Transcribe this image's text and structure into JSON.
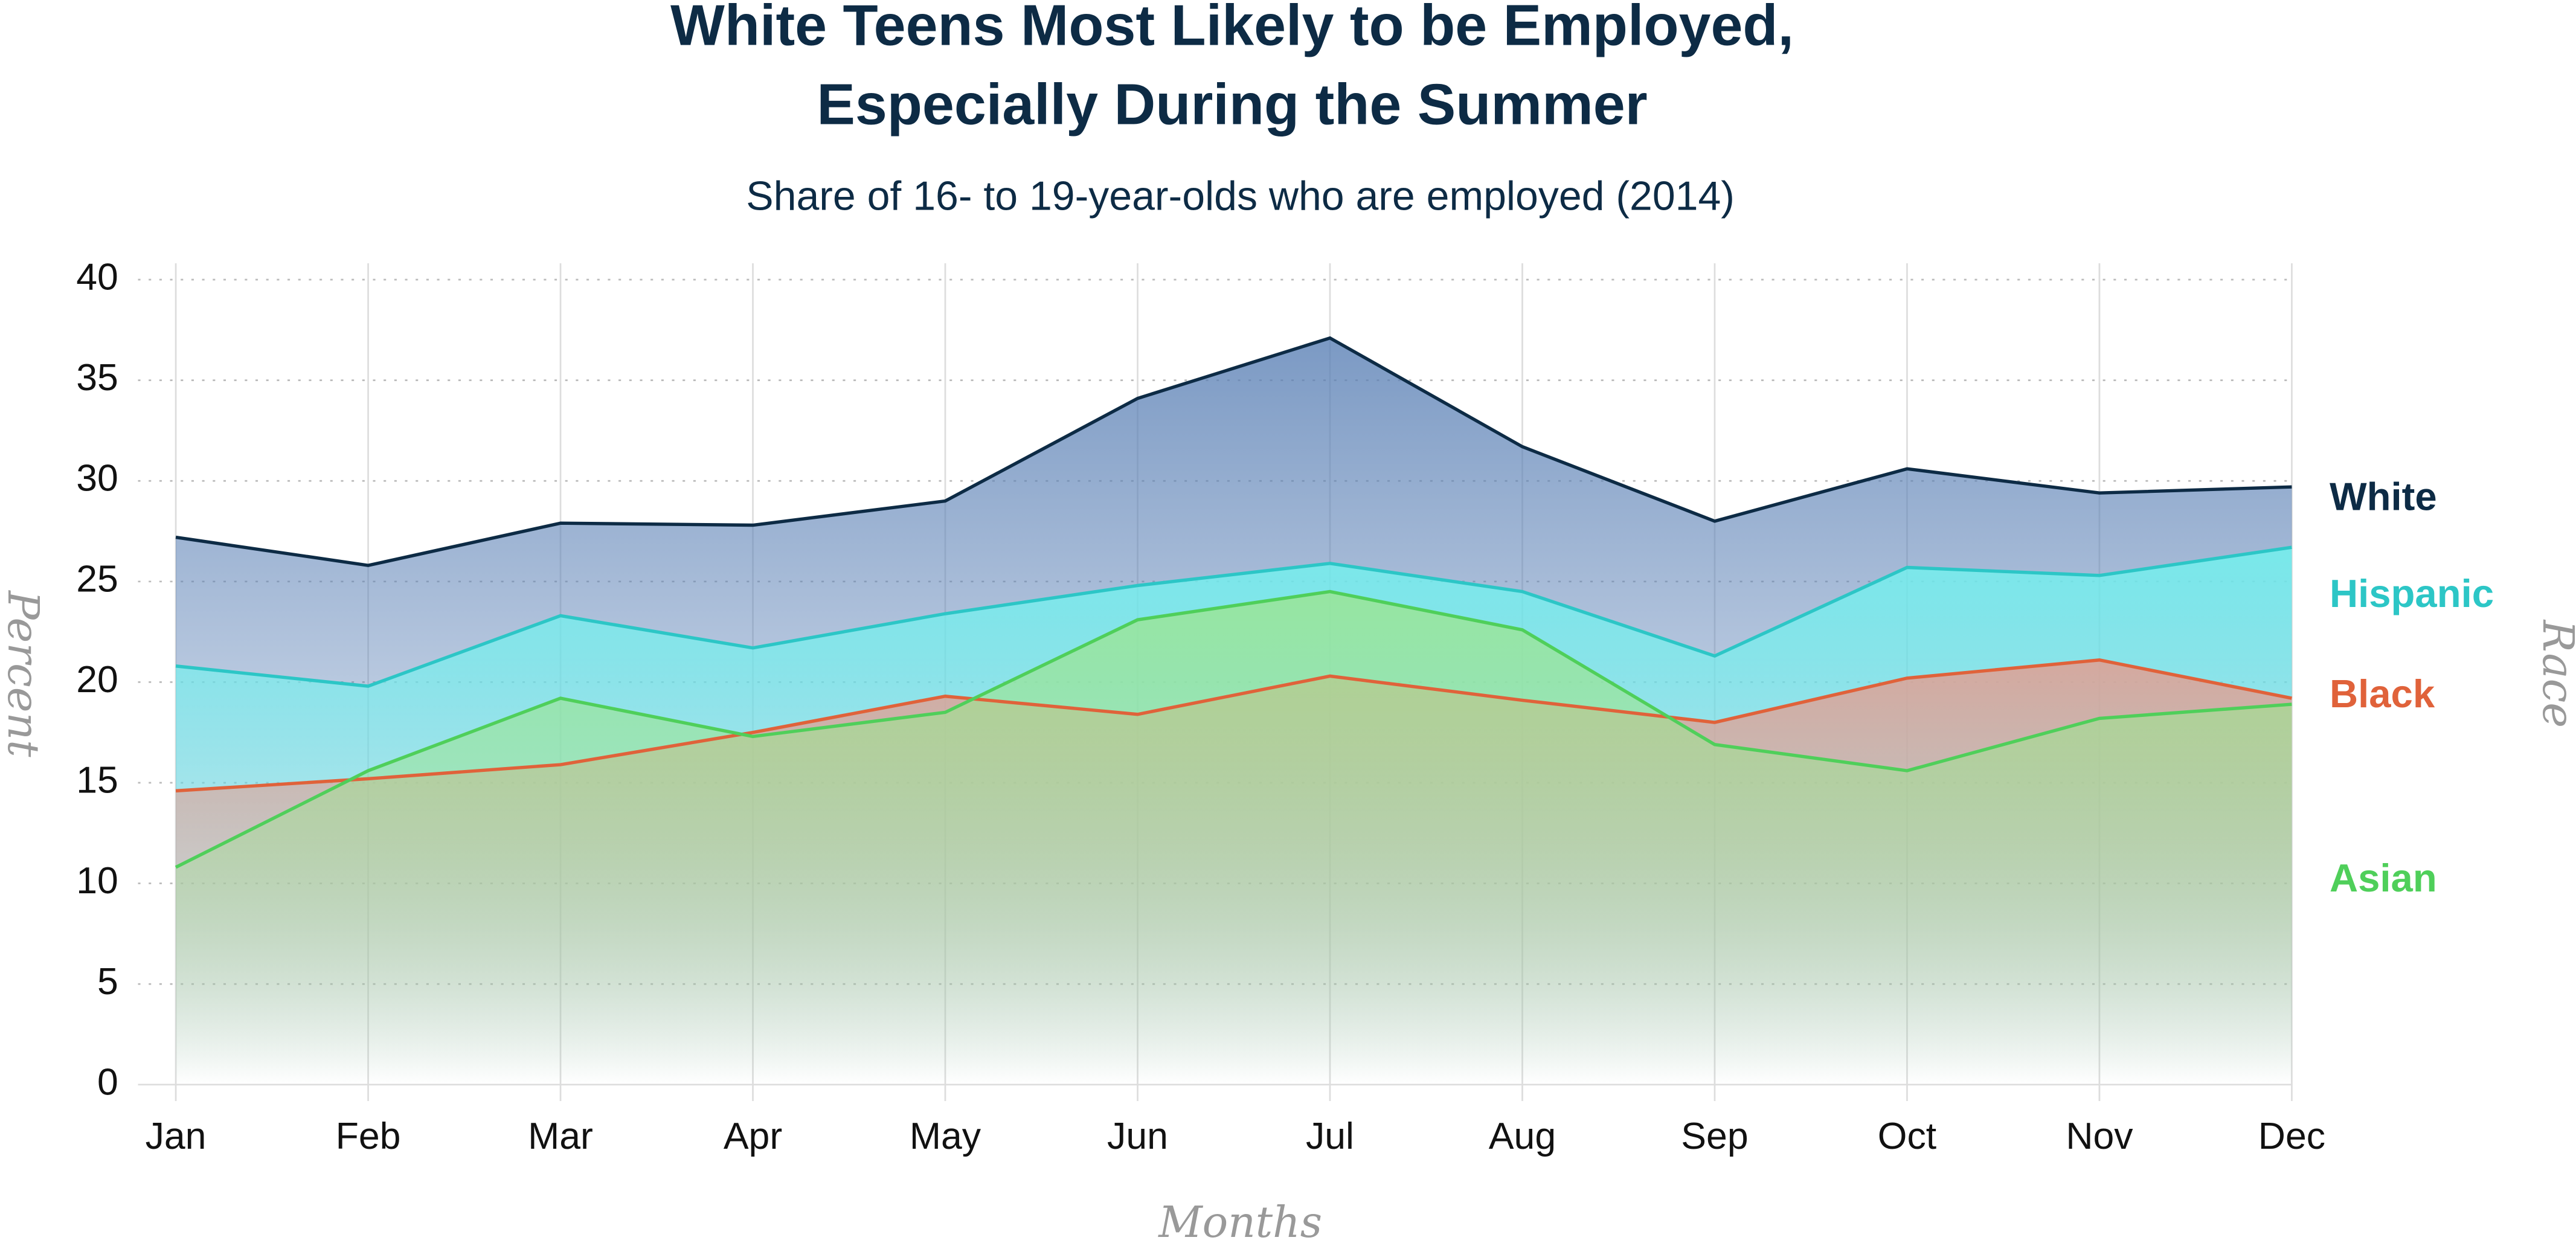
{
  "chart_data": {
    "type": "line",
    "title": [
      "White Teens Most Likely to be Employed,",
      "Especially During the Summer"
    ],
    "subtitle": "Share of 16- to 19-year-olds who are employed (2014)",
    "x_label": "Months",
    "y_label": "Percent",
    "legend_title": "Race",
    "categories": [
      "Jan",
      "Feb",
      "Mar",
      "Apr",
      "May",
      "Jun",
      "Jul",
      "Aug",
      "Sep",
      "Oct",
      "Nov",
      "Dec"
    ],
    "series": [
      {
        "name": "White",
        "color": "#0d2b45",
        "fill": "#5a80b5",
        "values": [
          27.2,
          25.8,
          27.9,
          27.8,
          29.0,
          34.1,
          37.1,
          31.7,
          28.0,
          30.6,
          29.4,
          29.7
        ]
      },
      {
        "name": "Hispanic",
        "color": "#2cc6c6",
        "fill": "#6ff5f0",
        "values": [
          20.8,
          19.8,
          23.3,
          21.7,
          23.4,
          24.8,
          25.9,
          24.5,
          21.3,
          25.7,
          25.3,
          26.7
        ]
      },
      {
        "name": "Black",
        "color": "#e0623a",
        "fill": "#e89a8c",
        "values": [
          14.6,
          15.2,
          15.9,
          17.5,
          19.3,
          18.4,
          20.3,
          19.1,
          18.0,
          20.2,
          21.1,
          19.2
        ]
      },
      {
        "name": "Asian",
        "color": "#4fcf5a",
        "fill": "#9ce58f",
        "values": [
          10.8,
          15.6,
          19.2,
          17.3,
          18.5,
          23.1,
          24.5,
          22.6,
          16.9,
          15.6,
          18.2,
          18.9
        ]
      }
    ],
    "ylim": [
      0,
      40
    ],
    "yticks": [
      0,
      5,
      10,
      15,
      20,
      25,
      30,
      35,
      40
    ],
    "grid": true,
    "legend": "right"
  }
}
